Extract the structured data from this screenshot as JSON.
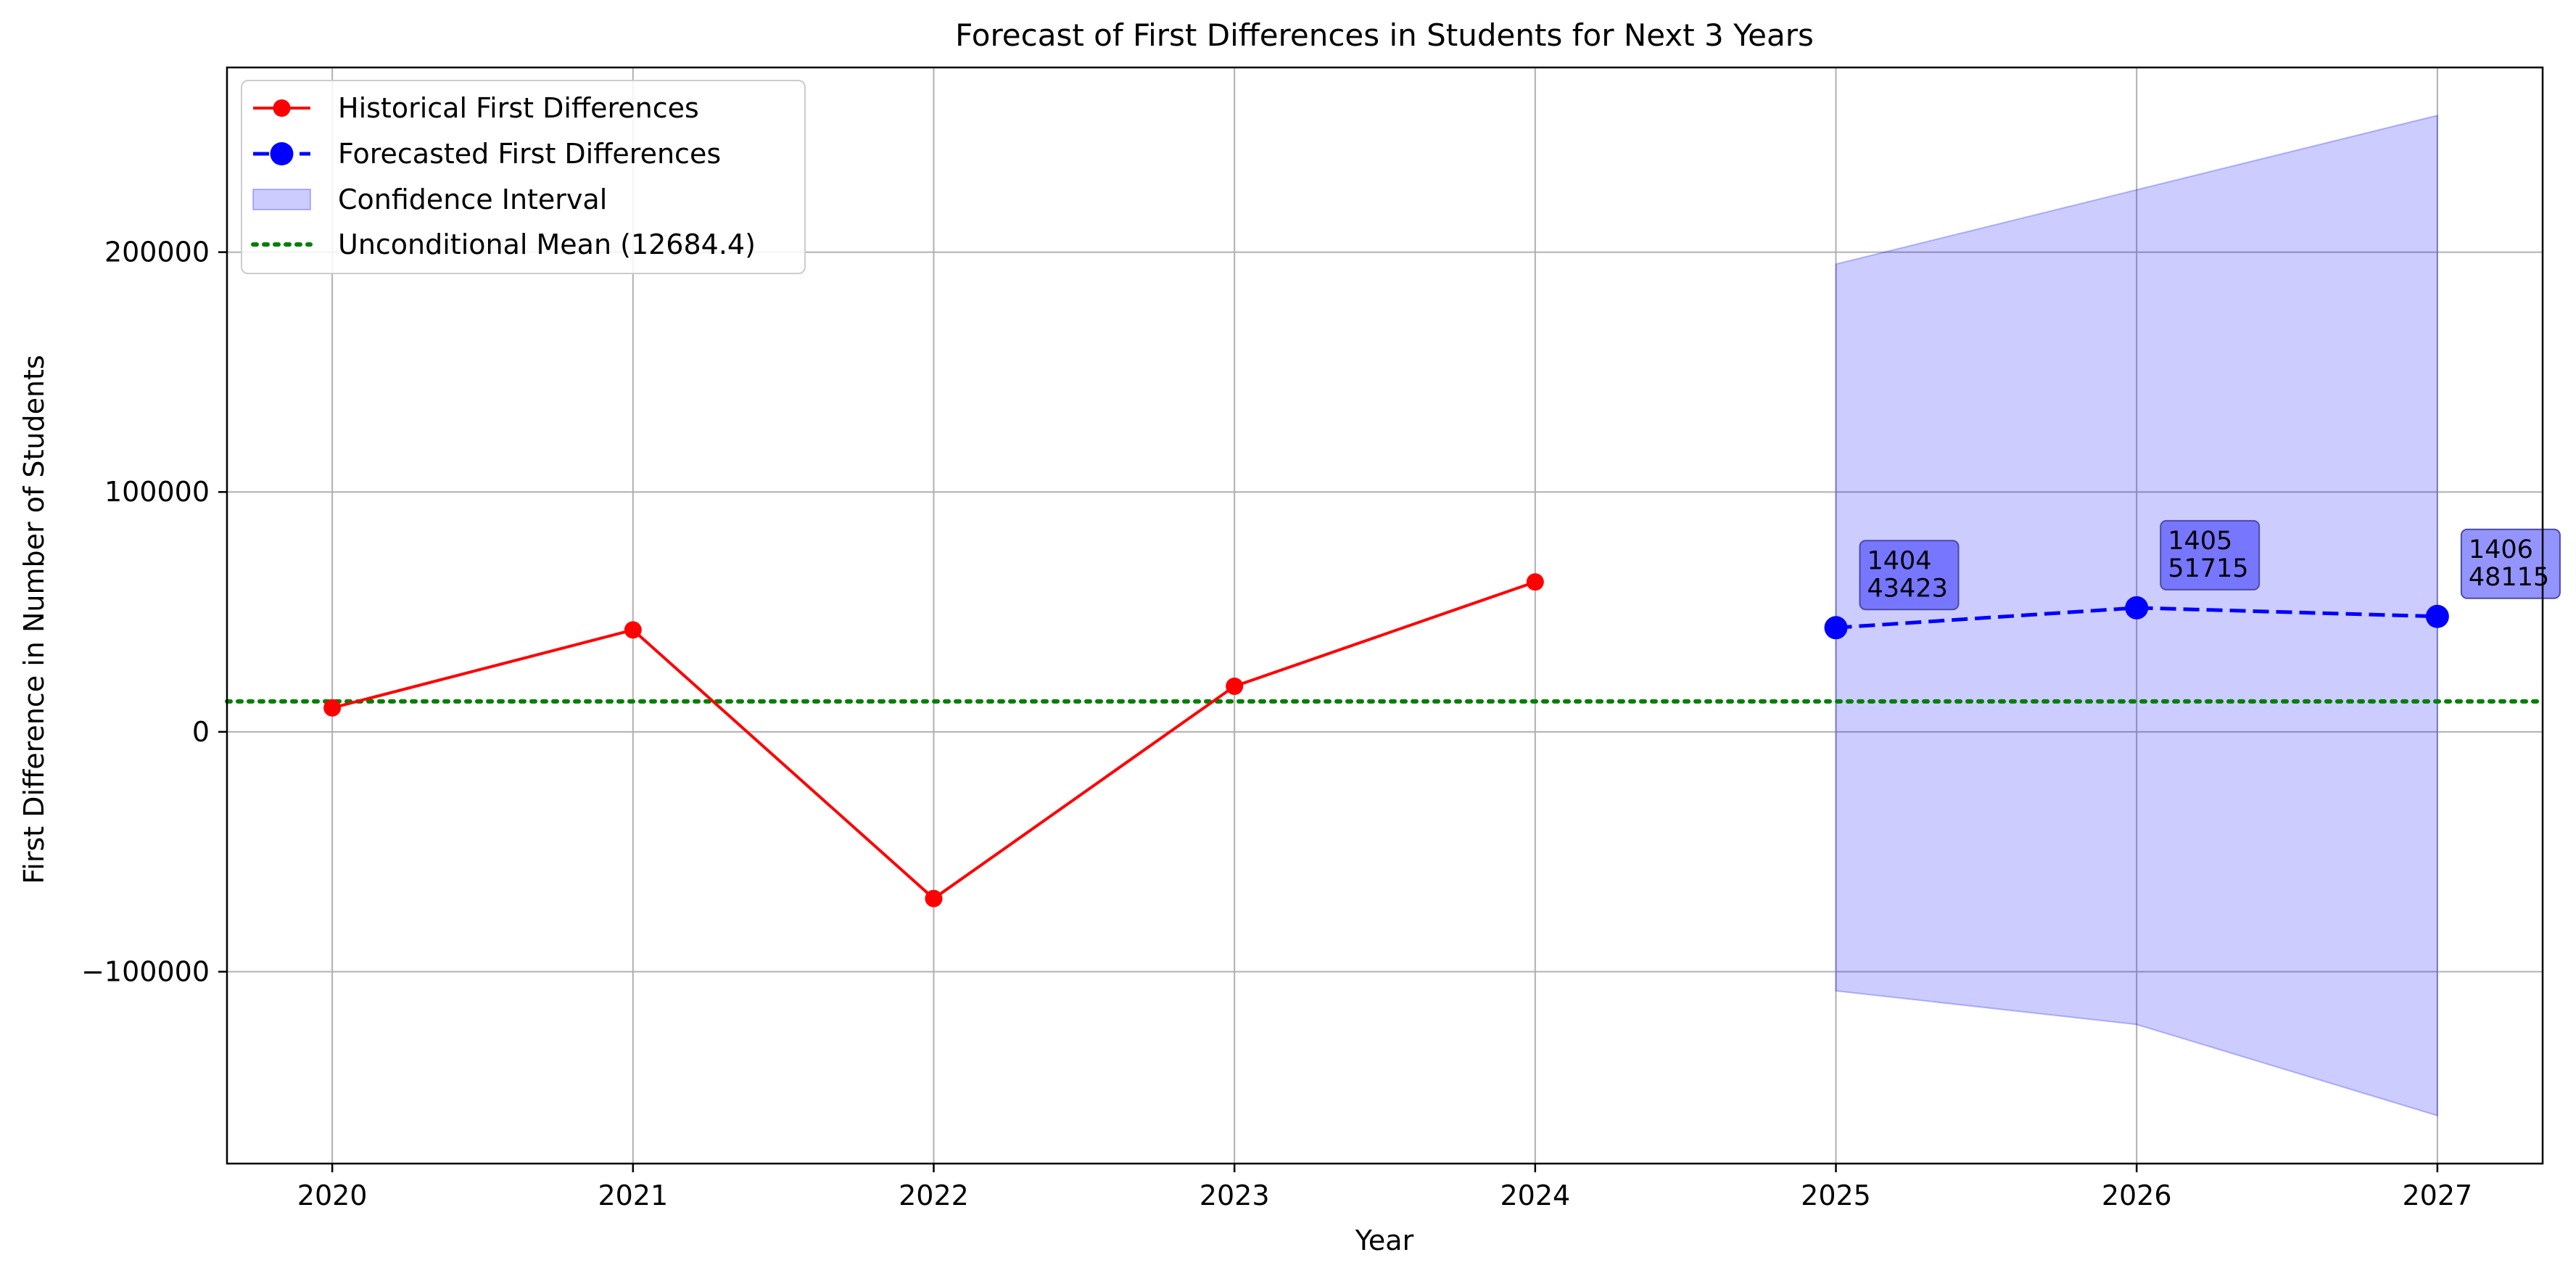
{
  "chart_data": {
    "type": "line",
    "title": "Forecast of First Differences in Students for Next 3 Years",
    "xlabel": "Year",
    "ylabel": "First Difference in Number of Students",
    "xlim": [
      2019.65,
      2027.35
    ],
    "ylim": [
      -180000,
      277000
    ],
    "x_ticks": [
      2020,
      2021,
      2022,
      2023,
      2024,
      2025,
      2026,
      2027
    ],
    "x_tick_labels": [
      "2020",
      "2021",
      "2022",
      "2023",
      "2024",
      "2025",
      "2026",
      "2027"
    ],
    "y_ticks": [
      -100000,
      0,
      100000,
      200000
    ],
    "y_tick_labels": [
      "−100000",
      "0",
      "100000",
      "200000"
    ],
    "grid": true,
    "legend_position": "upper left",
    "series": [
      {
        "name": "Historical First Differences",
        "color": "#ff0000",
        "line_style": "solid",
        "marker": "circle",
        "x": [
          2020,
          2021,
          2022,
          2023,
          2024
        ],
        "y": [
          10000,
          42500,
          -69500,
          19000,
          62500
        ]
      },
      {
        "name": "Forecasted First Differences",
        "color": "#0000ff",
        "line_style": "dashed",
        "marker": "circle",
        "x": [
          2025,
          2026,
          2027
        ],
        "y": [
          43423,
          51715,
          48115
        ]
      }
    ],
    "confidence_interval": {
      "name": "Confidence Interval",
      "color": "#0000ff",
      "opacity": 0.2,
      "x": [
        2025,
        2026,
        2027
      ],
      "upper": [
        195000,
        226000,
        257000
      ],
      "lower": [
        -108000,
        -122000,
        -160000
      ]
    },
    "reference_line": {
      "name": "Unconditional Mean (12684.4)",
      "color": "#008000",
      "line_style": "dotted",
      "y": 12684.4
    },
    "annotations": [
      {
        "x": 2025,
        "y": 43423,
        "lines": [
          "1404",
          "43423"
        ]
      },
      {
        "x": 2026,
        "y": 51715,
        "lines": [
          "1405",
          "51715"
        ]
      },
      {
        "x": 2027,
        "y": 48115,
        "lines": [
          "1406",
          "48115"
        ]
      }
    ]
  }
}
